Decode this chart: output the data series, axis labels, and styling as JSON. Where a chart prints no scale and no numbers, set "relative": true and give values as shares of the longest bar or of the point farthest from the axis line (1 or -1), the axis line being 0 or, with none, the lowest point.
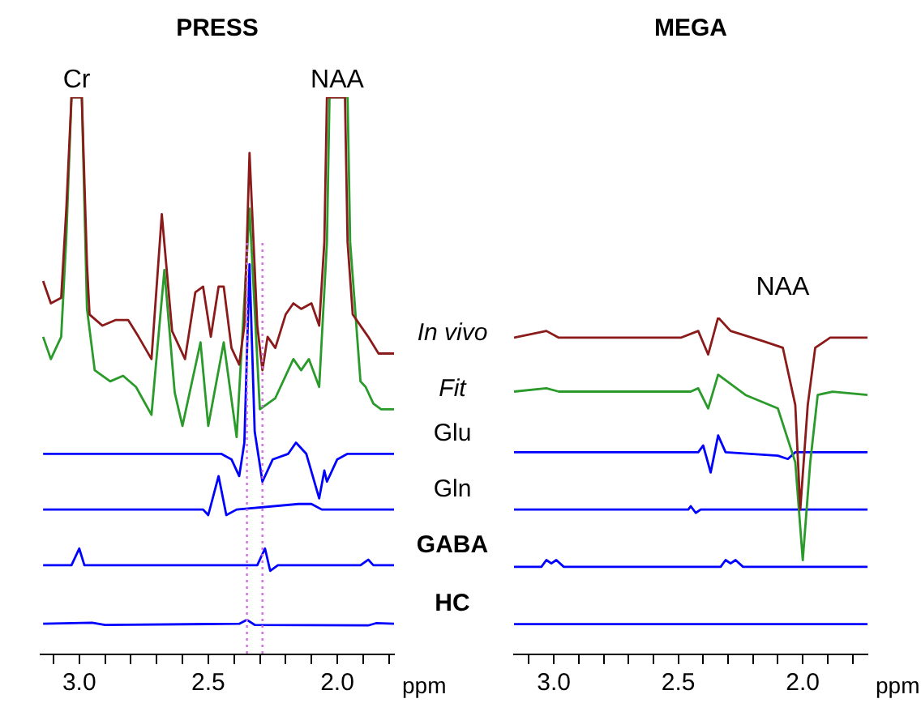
{
  "chart_data": [
    {
      "type": "line",
      "title": "PRESS",
      "xlabel": "ppm",
      "relative": true,
      "legend": false,
      "marker": "none",
      "line_style": "solid",
      "xlim": [
        3.15,
        1.78
      ],
      "xticks": [
        {
          "value": 3.1,
          "label": null
        },
        {
          "value": 3.0,
          "label": "3.0"
        },
        {
          "value": 2.9,
          "label": null
        },
        {
          "value": 2.8,
          "label": null
        },
        {
          "value": 2.7,
          "label": null
        },
        {
          "value": 2.6,
          "label": null
        },
        {
          "value": 2.5,
          "label": "2.5"
        },
        {
          "value": 2.4,
          "label": null
        },
        {
          "value": 2.3,
          "label": null
        },
        {
          "value": 2.2,
          "label": null
        },
        {
          "value": 2.1,
          "label": null
        },
        {
          "value": 2.0,
          "label": "2.0"
        },
        {
          "value": 1.9,
          "label": null
        },
        {
          "value": 1.8,
          "label": null
        }
      ],
      "annotations": [
        {
          "text": "Cr",
          "x": 3.01,
          "y": 1.0
        },
        {
          "text": "NAA",
          "x": 2.0,
          "y": 1.0
        }
      ],
      "ref_lines": [
        {
          "axis": "x",
          "value": 2.35,
          "color": "#d070e0",
          "line_style": "dotted"
        },
        {
          "axis": "x",
          "value": 2.29,
          "color": "#d070e0",
          "line_style": "dotted"
        }
      ],
      "series": [
        {
          "name": "In vivo",
          "color": "#8b1a1a",
          "x": [
            3.14,
            3.11,
            3.07,
            3.05,
            3.03,
            2.99,
            2.97,
            2.96,
            2.91,
            2.86,
            2.81,
            2.77,
            2.72,
            2.68,
            2.64,
            2.59,
            2.55,
            2.52,
            2.49,
            2.46,
            2.44,
            2.41,
            2.38,
            2.36,
            2.34,
            2.31,
            2.29,
            2.27,
            2.24,
            2.2,
            2.17,
            2.14,
            2.1,
            2.07,
            2.05,
            2.04,
            1.97,
            1.96,
            1.94,
            1.91,
            1.88,
            1.84,
            1.78
          ],
          "values": [
            0.67,
            0.63,
            0.64,
            0.8,
            1.0,
            1.0,
            0.7,
            0.61,
            0.59,
            0.6,
            0.6,
            0.57,
            0.53,
            0.79,
            0.58,
            0.53,
            0.65,
            0.66,
            0.57,
            0.66,
            0.66,
            0.55,
            0.52,
            0.59,
            0.9,
            0.59,
            0.51,
            0.57,
            0.55,
            0.61,
            0.63,
            0.62,
            0.63,
            0.59,
            0.74,
            1.0,
            1.0,
            0.74,
            0.61,
            0.59,
            0.57,
            0.54,
            0.54
          ]
        },
        {
          "name": "Fit",
          "color": "#2a9a2a",
          "x": [
            3.14,
            3.11,
            3.07,
            3.05,
            3.03,
            2.99,
            2.97,
            2.94,
            2.88,
            2.83,
            2.78,
            2.72,
            2.67,
            2.63,
            2.6,
            2.53,
            2.5,
            2.44,
            2.39,
            2.34,
            2.3,
            2.24,
            2.17,
            2.14,
            2.11,
            2.07,
            2.04,
            2.03,
            1.96,
            1.95,
            1.91,
            1.89,
            1.86,
            1.83,
            1.78
          ],
          "values": [
            0.57,
            0.53,
            0.57,
            0.75,
            1.0,
            1.0,
            0.62,
            0.51,
            0.49,
            0.5,
            0.48,
            0.43,
            0.69,
            0.47,
            0.41,
            0.56,
            0.41,
            0.56,
            0.39,
            0.8,
            0.44,
            0.46,
            0.53,
            0.51,
            0.53,
            0.48,
            0.74,
            1.0,
            1.0,
            0.74,
            0.49,
            0.48,
            0.45,
            0.44,
            0.44
          ]
        },
        {
          "name": "Glu",
          "color": "#0000ff",
          "x": [
            3.14,
            2.45,
            2.41,
            2.38,
            2.36,
            2.34,
            2.32,
            2.29,
            2.25,
            2.19,
            2.16,
            2.12,
            2.07,
            2.05,
            2.04,
            2.0,
            1.96,
            1.78
          ],
          "values": [
            0.36,
            0.36,
            0.35,
            0.32,
            0.38,
            0.7,
            0.4,
            0.31,
            0.35,
            0.36,
            0.38,
            0.36,
            0.28,
            0.33,
            0.31,
            0.35,
            0.36,
            0.36
          ]
        },
        {
          "name": "Gln",
          "color": "#0000ff",
          "x": [
            3.14,
            2.52,
            2.5,
            2.46,
            2.43,
            2.39,
            2.15,
            2.1,
            2.06,
            1.78
          ],
          "values": [
            0.26,
            0.26,
            0.25,
            0.32,
            0.25,
            0.26,
            0.27,
            0.27,
            0.26,
            0.26
          ]
        },
        {
          "name": "GABA",
          "color": "#0000ff",
          "x": [
            3.14,
            3.03,
            3.0,
            2.98,
            2.31,
            2.28,
            2.26,
            2.23,
            1.91,
            1.88,
            1.86,
            1.78
          ],
          "values": [
            0.16,
            0.16,
            0.19,
            0.16,
            0.16,
            0.19,
            0.15,
            0.16,
            0.16,
            0.17,
            0.16,
            0.16
          ]
        },
        {
          "name": "HC",
          "color": "#0000ff",
          "x": [
            3.14,
            2.95,
            2.9,
            2.38,
            2.35,
            2.32,
            1.88,
            1.85,
            1.78
          ],
          "values": [
            0.055,
            0.057,
            0.053,
            0.055,
            0.062,
            0.053,
            0.052,
            0.056,
            0.055
          ]
        }
      ]
    },
    {
      "type": "line",
      "title": "MEGA",
      "xlabel": "ppm",
      "relative": true,
      "legend": false,
      "marker": "none",
      "line_style": "solid",
      "xlim": [
        3.16,
        1.74
      ],
      "xticks": [
        {
          "value": 3.1,
          "label": null
        },
        {
          "value": 3.0,
          "label": "3.0"
        },
        {
          "value": 2.9,
          "label": null
        },
        {
          "value": 2.8,
          "label": null
        },
        {
          "value": 2.7,
          "label": null
        },
        {
          "value": 2.6,
          "label": null
        },
        {
          "value": 2.5,
          "label": "2.5"
        },
        {
          "value": 2.4,
          "label": null
        },
        {
          "value": 2.3,
          "label": null
        },
        {
          "value": 2.2,
          "label": null
        },
        {
          "value": 2.1,
          "label": null
        },
        {
          "value": 2.0,
          "label": "2.0"
        },
        {
          "value": 1.9,
          "label": null
        },
        {
          "value": 1.8,
          "label": null
        }
      ],
      "annotations": [
        "NAA"
      ],
      "series": [
        {
          "color": "#8b1a1a",
          "x": [
            3.16,
            3.03,
            2.98,
            2.49,
            2.42,
            2.38,
            2.34,
            2.29,
            2.16,
            2.08,
            2.03,
            2.01,
            1.98,
            1.95,
            1.89,
            1.74
          ],
          "values": [
            0.94,
            0.96,
            0.94,
            0.94,
            0.96,
            0.89,
            1.0,
            0.96,
            0.93,
            0.91,
            0.74,
            0.43,
            0.74,
            0.91,
            0.94,
            0.94
          ]
        },
        {
          "color": "#2a9a2a",
          "x": [
            3.16,
            3.03,
            2.98,
            2.45,
            2.42,
            2.38,
            2.34,
            2.23,
            2.1,
            2.03,
            2.0,
            1.97,
            1.94,
            1.88,
            1.74
          ],
          "values": [
            0.78,
            0.79,
            0.78,
            0.78,
            0.79,
            0.73,
            0.83,
            0.77,
            0.73,
            0.57,
            0.28,
            0.57,
            0.77,
            0.78,
            0.77
          ]
        },
        {
          "color": "#0000ff",
          "x": [
            3.16,
            2.42,
            2.4,
            2.37,
            2.34,
            2.31,
            2.1,
            2.06,
            2.03,
            1.74
          ],
          "values": [
            0.6,
            0.6,
            0.62,
            0.54,
            0.65,
            0.6,
            0.59,
            0.58,
            0.6,
            0.6
          ]
        },
        {
          "color": "#0000ff",
          "x": [
            3.16,
            2.46,
            2.45,
            2.43,
            2.41,
            1.74
          ],
          "values": [
            0.43,
            0.43,
            0.44,
            0.42,
            0.43,
            0.43
          ]
        },
        {
          "color": "#0000ff",
          "x": [
            3.16,
            3.05,
            3.03,
            3.01,
            2.99,
            2.96,
            2.33,
            2.31,
            2.29,
            2.27,
            2.24,
            1.74
          ],
          "values": [
            0.26,
            0.26,
            0.28,
            0.27,
            0.28,
            0.26,
            0.26,
            0.28,
            0.27,
            0.28,
            0.26,
            0.26
          ]
        },
        {
          "color": "#0000ff",
          "x": [
            3.16,
            1.74
          ],
          "values": [
            0.09,
            0.09
          ]
        }
      ]
    }
  ]
}
